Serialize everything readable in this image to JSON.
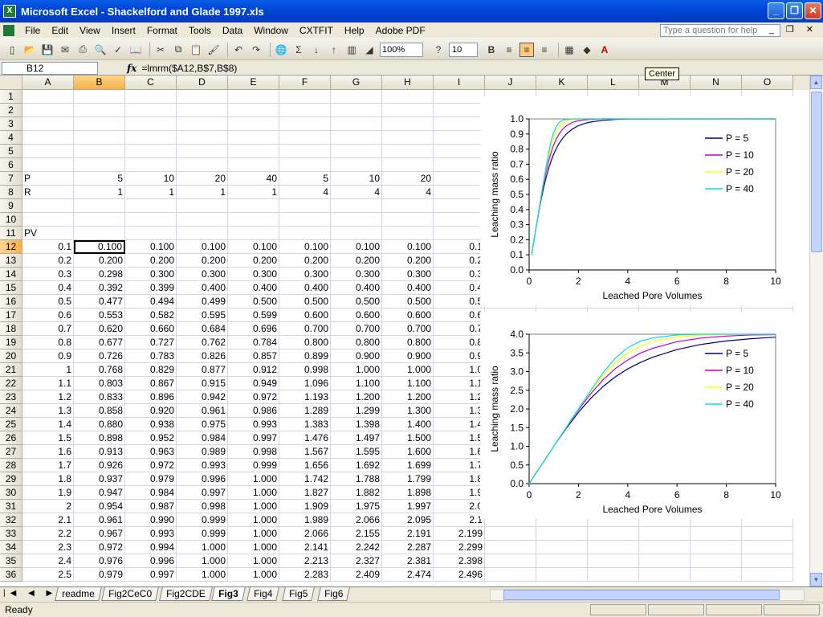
{
  "window": {
    "title": "Microsoft Excel - Shackelford and Glade 1997.xls",
    "app_icon": "excel-icon"
  },
  "menu": {
    "items": [
      "File",
      "Edit",
      "View",
      "Insert",
      "Format",
      "Tools",
      "Data",
      "Window",
      "CXTFIT",
      "Help",
      "Adobe PDF"
    ],
    "help_placeholder": "Type a question for help"
  },
  "toolbar": {
    "zoom": "100%",
    "font_size": "10",
    "bold": "B",
    "tooltip": "Center"
  },
  "formula_bar": {
    "name_box": "B12",
    "fx": "fx",
    "formula": "=lmrm($A12,B$7,B$8)"
  },
  "columns": [
    "A",
    "B",
    "C",
    "D",
    "E",
    "F",
    "G",
    "H",
    "I",
    "J",
    "K",
    "L",
    "M",
    "N",
    "O"
  ],
  "selected": {
    "column": "B",
    "row": 12
  },
  "sheet_rows": [
    {
      "n": 1,
      "cells": []
    },
    {
      "n": 2,
      "cells": []
    },
    {
      "n": 3,
      "cells": []
    },
    {
      "n": 4,
      "cells": []
    },
    {
      "n": 5,
      "cells": []
    },
    {
      "n": 6,
      "cells": []
    },
    {
      "n": 7,
      "cells": [
        "P",
        "5",
        "10",
        "20",
        "40",
        "5",
        "10",
        "20",
        ""
      ]
    },
    {
      "n": 8,
      "cells": [
        "R",
        "1",
        "1",
        "1",
        "1",
        "4",
        "4",
        "4",
        ""
      ]
    },
    {
      "n": 9,
      "cells": []
    },
    {
      "n": 10,
      "cells": []
    },
    {
      "n": 11,
      "cells": [
        "PV",
        "",
        "",
        "",
        "",
        "",
        "",
        "",
        ""
      ]
    },
    {
      "n": 12,
      "cells": [
        "0.1",
        "0.100",
        "0.100",
        "0.100",
        "0.100",
        "0.100",
        "0.100",
        "0.100",
        "0.1"
      ]
    },
    {
      "n": 13,
      "cells": [
        "0.2",
        "0.200",
        "0.200",
        "0.200",
        "0.200",
        "0.200",
        "0.200",
        "0.200",
        "0.2"
      ]
    },
    {
      "n": 14,
      "cells": [
        "0.3",
        "0.298",
        "0.300",
        "0.300",
        "0.300",
        "0.300",
        "0.300",
        "0.300",
        "0.3"
      ]
    },
    {
      "n": 15,
      "cells": [
        "0.4",
        "0.392",
        "0.399",
        "0.400",
        "0.400",
        "0.400",
        "0.400",
        "0.400",
        "0.4"
      ]
    },
    {
      "n": 16,
      "cells": [
        "0.5",
        "0.477",
        "0.494",
        "0.499",
        "0.500",
        "0.500",
        "0.500",
        "0.500",
        "0.5"
      ]
    },
    {
      "n": 17,
      "cells": [
        "0.6",
        "0.553",
        "0.582",
        "0.595",
        "0.599",
        "0.600",
        "0.600",
        "0.600",
        "0.6"
      ]
    },
    {
      "n": 18,
      "cells": [
        "0.7",
        "0.620",
        "0.660",
        "0.684",
        "0.696",
        "0.700",
        "0.700",
        "0.700",
        "0.7"
      ]
    },
    {
      "n": 19,
      "cells": [
        "0.8",
        "0.677",
        "0.727",
        "0.762",
        "0.784",
        "0.800",
        "0.800",
        "0.800",
        "0.8"
      ]
    },
    {
      "n": 20,
      "cells": [
        "0.9",
        "0.726",
        "0.783",
        "0.826",
        "0.857",
        "0.899",
        "0.900",
        "0.900",
        "0.9"
      ]
    },
    {
      "n": 21,
      "cells": [
        "1",
        "0.768",
        "0.829",
        "0.877",
        "0.912",
        "0.998",
        "1.000",
        "1.000",
        "1.0"
      ]
    },
    {
      "n": 22,
      "cells": [
        "1.1",
        "0.803",
        "0.867",
        "0.915",
        "0.949",
        "1.096",
        "1.100",
        "1.100",
        "1.1"
      ]
    },
    {
      "n": 23,
      "cells": [
        "1.2",
        "0.833",
        "0.896",
        "0.942",
        "0.972",
        "1.193",
        "1.200",
        "1.200",
        "1.2"
      ]
    },
    {
      "n": 24,
      "cells": [
        "1.3",
        "0.858",
        "0.920",
        "0.961",
        "0.986",
        "1.289",
        "1.299",
        "1.300",
        "1.3"
      ]
    },
    {
      "n": 25,
      "cells": [
        "1.4",
        "0.880",
        "0.938",
        "0.975",
        "0.993",
        "1.383",
        "1.398",
        "1.400",
        "1.4"
      ]
    },
    {
      "n": 26,
      "cells": [
        "1.5",
        "0.898",
        "0.952",
        "0.984",
        "0.997",
        "1.476",
        "1.497",
        "1.500",
        "1.5"
      ]
    },
    {
      "n": 27,
      "cells": [
        "1.6",
        "0.913",
        "0.963",
        "0.989",
        "0.998",
        "1.567",
        "1.595",
        "1.600",
        "1.6"
      ]
    },
    {
      "n": 28,
      "cells": [
        "1.7",
        "0.926",
        "0.972",
        "0.993",
        "0.999",
        "1.656",
        "1.692",
        "1.699",
        "1.7"
      ]
    },
    {
      "n": 29,
      "cells": [
        "1.8",
        "0.937",
        "0.979",
        "0.996",
        "1.000",
        "1.742",
        "1.788",
        "1.799",
        "1.8"
      ]
    },
    {
      "n": 30,
      "cells": [
        "1.9",
        "0.947",
        "0.984",
        "0.997",
        "1.000",
        "1.827",
        "1.882",
        "1.898",
        "1.9"
      ]
    },
    {
      "n": 31,
      "cells": [
        "2",
        "0.954",
        "0.987",
        "0.998",
        "1.000",
        "1.909",
        "1.975",
        "1.997",
        "2.0"
      ]
    },
    {
      "n": 32,
      "cells": [
        "2.1",
        "0.961",
        "0.990",
        "0.999",
        "1.000",
        "1.989",
        "2.066",
        "2.095",
        "2.1"
      ]
    },
    {
      "n": 33,
      "cells": [
        "2.2",
        "0.967",
        "0.993",
        "0.999",
        "1.000",
        "2.066",
        "2.155",
        "2.191",
        "2.199"
      ]
    },
    {
      "n": 34,
      "cells": [
        "2.3",
        "0.972",
        "0.994",
        "1.000",
        "1.000",
        "2.141",
        "2.242",
        "2.287",
        "2.299"
      ]
    },
    {
      "n": 35,
      "cells": [
        "2.4",
        "0.976",
        "0.996",
        "1.000",
        "1.000",
        "2.213",
        "2.327",
        "2.381",
        "2.398"
      ]
    },
    {
      "n": 36,
      "cells": [
        "2.5",
        "0.979",
        "0.997",
        "1.000",
        "1.000",
        "2.283",
        "2.409",
        "2.474",
        "2.496"
      ]
    }
  ],
  "chart_data": [
    {
      "type": "line",
      "xlabel": "Leached Pore Volumes",
      "ylabel": "Leaching mass ratio",
      "xlim": [
        0,
        10
      ],
      "ylim": [
        0,
        1
      ],
      "x_ticks": [
        "0",
        "2",
        "4",
        "6",
        "8",
        "10"
      ],
      "y_ticks": [
        "0.0",
        "0.1",
        "0.2",
        "0.3",
        "0.4",
        "0.5",
        "0.6",
        "0.7",
        "0.8",
        "0.9",
        "1.0"
      ],
      "legend": "top-right",
      "x": [
        0.1,
        0.2,
        0.3,
        0.4,
        0.5,
        0.6,
        0.7,
        0.8,
        0.9,
        1.0,
        1.1,
        1.2,
        1.3,
        1.4,
        1.5,
        1.6,
        1.7,
        1.8,
        1.9,
        2.0,
        2.1,
        2.2,
        2.3,
        2.4,
        2.5,
        3.0,
        3.5,
        4.0,
        10.0
      ],
      "series": [
        {
          "name": "P = 5",
          "color": "#000080",
          "values": [
            0.1,
            0.2,
            0.298,
            0.392,
            0.477,
            0.553,
            0.62,
            0.677,
            0.726,
            0.768,
            0.803,
            0.833,
            0.858,
            0.88,
            0.898,
            0.913,
            0.926,
            0.937,
            0.947,
            0.954,
            0.961,
            0.967,
            0.972,
            0.976,
            0.979,
            0.991,
            0.997,
            0.999,
            1.0
          ]
        },
        {
          "name": "P = 10",
          "color": "#c000c0",
          "values": [
            0.1,
            0.2,
            0.3,
            0.399,
            0.494,
            0.582,
            0.66,
            0.727,
            0.783,
            0.829,
            0.867,
            0.896,
            0.92,
            0.938,
            0.952,
            0.963,
            0.972,
            0.979,
            0.984,
            0.987,
            0.99,
            0.993,
            0.994,
            0.996,
            0.997,
            1.0,
            1.0,
            1.0,
            1.0
          ]
        },
        {
          "name": "P = 20",
          "color": "#ffff00",
          "values": [
            0.1,
            0.2,
            0.3,
            0.4,
            0.499,
            0.595,
            0.684,
            0.762,
            0.826,
            0.877,
            0.915,
            0.942,
            0.961,
            0.975,
            0.984,
            0.989,
            0.993,
            0.996,
            0.997,
            0.998,
            0.999,
            0.999,
            1.0,
            1.0,
            1.0,
            1.0,
            1.0,
            1.0,
            1.0
          ]
        },
        {
          "name": "P = 40",
          "color": "#00e0e0",
          "values": [
            0.1,
            0.2,
            0.3,
            0.4,
            0.5,
            0.599,
            0.696,
            0.784,
            0.857,
            0.912,
            0.949,
            0.972,
            0.986,
            0.993,
            0.997,
            0.998,
            0.999,
            1.0,
            1.0,
            1.0,
            1.0,
            1.0,
            1.0,
            1.0,
            1.0,
            1.0,
            1.0,
            1.0,
            1.0
          ]
        }
      ]
    },
    {
      "type": "line",
      "xlabel": "Leached Pore Volumes",
      "ylabel": "Leaching mass ratio",
      "xlim": [
        0,
        10
      ],
      "ylim": [
        0,
        4
      ],
      "x_ticks": [
        "0",
        "2",
        "4",
        "6",
        "8",
        "10"
      ],
      "y_ticks": [
        "0.0",
        "0.5",
        "1.0",
        "1.5",
        "2.0",
        "2.5",
        "3.0",
        "3.5",
        "4.0"
      ],
      "legend": "right",
      "x": [
        0,
        0.5,
        1.0,
        1.5,
        2.0,
        2.5,
        3.0,
        3.5,
        4.0,
        4.5,
        5.0,
        6.0,
        7.0,
        8.0,
        9.0,
        10.0
      ],
      "series": [
        {
          "name": "P = 5",
          "color": "#000080",
          "values": [
            0.0,
            0.5,
            0.998,
            1.476,
            1.909,
            2.283,
            2.6,
            2.86,
            3.07,
            3.24,
            3.38,
            3.59,
            3.73,
            3.82,
            3.88,
            3.92
          ]
        },
        {
          "name": "P = 10",
          "color": "#c000c0",
          "values": [
            0.0,
            0.5,
            1.0,
            1.497,
            1.975,
            2.409,
            2.78,
            3.08,
            3.31,
            3.49,
            3.62,
            3.8,
            3.9,
            3.95,
            3.98,
            3.99
          ]
        },
        {
          "name": "P = 20",
          "color": "#ffff00",
          "values": [
            0.0,
            0.5,
            1.0,
            1.5,
            1.997,
            2.474,
            2.9,
            3.24,
            3.5,
            3.68,
            3.8,
            3.93,
            3.98,
            3.99,
            4.0,
            4.0
          ]
        },
        {
          "name": "P = 40",
          "color": "#00e0e0",
          "values": [
            0.0,
            0.5,
            1.0,
            1.5,
            2.0,
            2.496,
            2.97,
            3.36,
            3.64,
            3.81,
            3.9,
            3.98,
            4.0,
            4.0,
            4.0,
            4.0
          ]
        }
      ]
    }
  ],
  "sheet_tabs": [
    "readme",
    "Fig2CeC0",
    "Fig2CDE",
    "Fig3",
    "Fig4",
    "Fig5",
    "Fig6"
  ],
  "active_tab": "Fig3",
  "status": "Ready"
}
